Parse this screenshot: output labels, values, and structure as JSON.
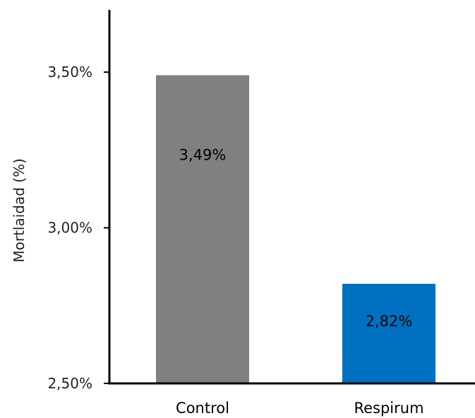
{
  "chart_data": {
    "type": "bar",
    "categories": [
      "Control",
      "Respirum"
    ],
    "values": [
      3.49,
      2.82
    ],
    "data_labels": [
      "3,49%",
      "2,82%"
    ],
    "colors": [
      "#808080",
      "#0070C0"
    ],
    "ylabel": "Mortlaidad (%)",
    "ylim": [
      2.5,
      3.7
    ],
    "yticks": [
      2.5,
      3.0,
      3.5
    ],
    "ytick_labels": [
      "2,50%",
      "3,00%",
      "3,50%"
    ],
    "grid": false,
    "legend": "none"
  }
}
